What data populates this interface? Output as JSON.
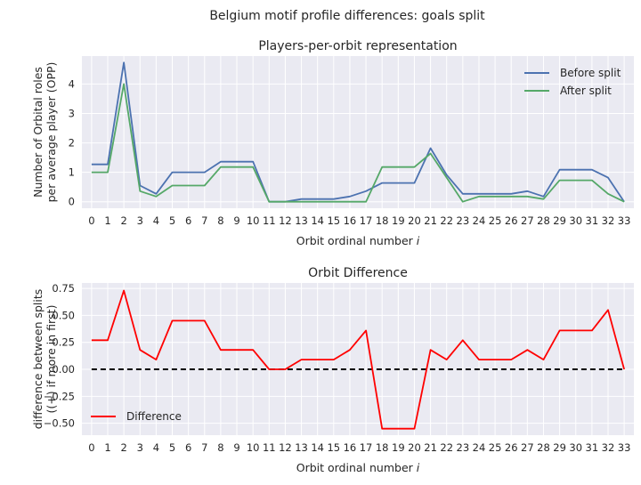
{
  "suptitle": "Belgium motif profile differences: goals split",
  "chart_data": [
    {
      "type": "line",
      "title": "Players-per-orbit representation",
      "xlabel": "Orbit ordinal number",
      "xlabel_var": "i",
      "ylabel_line1": "Number of Orbital roles",
      "ylabel_line2": "per average player (OPP)",
      "x": [
        0,
        1,
        2,
        3,
        4,
        5,
        6,
        7,
        8,
        9,
        10,
        11,
        12,
        13,
        14,
        15,
        16,
        17,
        18,
        19,
        20,
        21,
        22,
        23,
        24,
        25,
        26,
        27,
        28,
        29,
        30,
        31,
        32,
        33
      ],
      "xlim": [
        -0.6,
        33.6
      ],
      "ylim": [
        -0.22,
        4.95
      ],
      "yticks": [
        0,
        1,
        2,
        3,
        4
      ],
      "grid": true,
      "legend_position": "top-right",
      "series": [
        {
          "name": "Before split",
          "color": "#4c72b0",
          "values": [
            1.27,
            1.27,
            4.73,
            0.55,
            0.27,
            1.0,
            1.0,
            1.0,
            1.36,
            1.36,
            1.36,
            0.0,
            0.0,
            0.09,
            0.09,
            0.09,
            0.18,
            0.36,
            0.64,
            0.64,
            0.64,
            1.82,
            0.91,
            0.27,
            0.27,
            0.27,
            0.27,
            0.36,
            0.18,
            1.09,
            1.09,
            1.09,
            0.82,
            0.0
          ]
        },
        {
          "name": "After split",
          "color": "#55a868",
          "values": [
            1.0,
            1.0,
            4.0,
            0.36,
            0.18,
            0.55,
            0.55,
            0.55,
            1.18,
            1.18,
            1.18,
            0.0,
            0.0,
            0.0,
            0.0,
            0.0,
            0.0,
            0.0,
            1.18,
            1.18,
            1.18,
            1.64,
            0.82,
            0.0,
            0.18,
            0.18,
            0.18,
            0.18,
            0.09,
            0.73,
            0.73,
            0.73,
            0.27,
            0.0
          ]
        }
      ]
    },
    {
      "type": "line",
      "title": "Orbit Difference",
      "xlabel": "Orbit ordinal number",
      "xlabel_var": "i",
      "ylabel_line1": "difference between splits",
      "ylabel_line2": "((+) if more in first)",
      "x": [
        0,
        1,
        2,
        3,
        4,
        5,
        6,
        7,
        8,
        9,
        10,
        11,
        12,
        13,
        14,
        15,
        16,
        17,
        18,
        19,
        20,
        21,
        22,
        23,
        24,
        25,
        26,
        27,
        28,
        29,
        30,
        31,
        32,
        33
      ],
      "xlim": [
        -0.6,
        33.6
      ],
      "ylim": [
        -0.61,
        0.8
      ],
      "yticks": [
        -0.5,
        -0.25,
        0.0,
        0.25,
        0.5,
        0.75
      ],
      "ytick_labels": [
        "−0.50",
        "−0.25",
        "0.00",
        "0.25",
        "0.50",
        "0.75"
      ],
      "grid": true,
      "legend_position": "bottom-left",
      "series": [
        {
          "name": "Difference",
          "color": "#ff0000",
          "values": [
            0.27,
            0.27,
            0.73,
            0.18,
            0.09,
            0.45,
            0.45,
            0.45,
            0.18,
            0.18,
            0.18,
            0.0,
            0.0,
            0.09,
            0.09,
            0.09,
            0.18,
            0.36,
            -0.55,
            -0.55,
            -0.55,
            0.18,
            0.09,
            0.27,
            0.09,
            0.09,
            0.09,
            0.18,
            0.09,
            0.36,
            0.36,
            0.36,
            0.55,
            0.0
          ]
        }
      ],
      "reference_line": {
        "y": 0,
        "color": "#000000",
        "style": "dashed"
      }
    }
  ]
}
